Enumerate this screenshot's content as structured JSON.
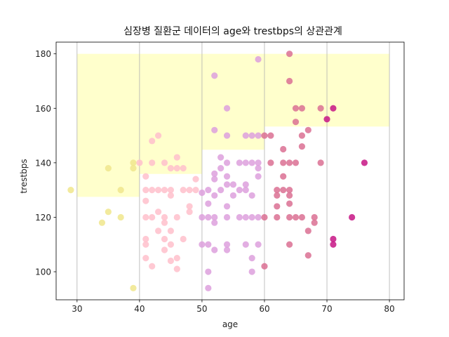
{
  "chart_data": {
    "type": "scatter",
    "title": "심장병 질환군 데이터의 age와 trestbps의 상관관계",
    "xlabel": "age",
    "ylabel": "trestbps",
    "xlim": [
      26.65,
      82.35
    ],
    "ylim": [
      89.7,
      184.3
    ],
    "xticks": [
      "30",
      "40",
      "50",
      "60",
      "70",
      "80"
    ],
    "yticks": [
      "100",
      "120",
      "140",
      "160",
      "180"
    ],
    "grid": "vertical lines at x ticks",
    "points": [
      {
        "x": 29,
        "y": 130
      },
      {
        "x": 34,
        "y": 118
      },
      {
        "x": 35,
        "y": 138
      },
      {
        "x": 35,
        "y": 122
      },
      {
        "x": 37,
        "y": 130
      },
      {
        "x": 37,
        "y": 120
      },
      {
        "x": 39,
        "y": 140
      },
      {
        "x": 39,
        "y": 138
      },
      {
        "x": 39,
        "y": 94
      },
      {
        "x": 40,
        "y": 140
      },
      {
        "x": 41,
        "y": 135
      },
      {
        "x": 41,
        "y": 130
      },
      {
        "x": 41,
        "y": 126
      },
      {
        "x": 41,
        "y": 120
      },
      {
        "x": 41,
        "y": 112
      },
      {
        "x": 41,
        "y": 110
      },
      {
        "x": 41,
        "y": 105
      },
      {
        "x": 42,
        "y": 148
      },
      {
        "x": 42,
        "y": 140
      },
      {
        "x": 42,
        "y": 130
      },
      {
        "x": 42,
        "y": 120
      },
      {
        "x": 42,
        "y": 102
      },
      {
        "x": 43,
        "y": 150
      },
      {
        "x": 43,
        "y": 130
      },
      {
        "x": 43,
        "y": 122
      },
      {
        "x": 43,
        "y": 115
      },
      {
        "x": 44,
        "y": 140
      },
      {
        "x": 44,
        "y": 130
      },
      {
        "x": 44,
        "y": 120
      },
      {
        "x": 44,
        "y": 118
      },
      {
        "x": 44,
        "y": 112
      },
      {
        "x": 44,
        "y": 108
      },
      {
        "x": 45,
        "y": 138
      },
      {
        "x": 45,
        "y": 130
      },
      {
        "x": 45,
        "y": 128
      },
      {
        "x": 45,
        "y": 115
      },
      {
        "x": 45,
        "y": 110
      },
      {
        "x": 45,
        "y": 104
      },
      {
        "x": 46,
        "y": 142
      },
      {
        "x": 46,
        "y": 138
      },
      {
        "x": 46,
        "y": 120
      },
      {
        "x": 46,
        "y": 105
      },
      {
        "x": 46,
        "y": 101
      },
      {
        "x": 47,
        "y": 138
      },
      {
        "x": 47,
        "y": 130
      },
      {
        "x": 47,
        "y": 112
      },
      {
        "x": 48,
        "y": 130
      },
      {
        "x": 48,
        "y": 124
      },
      {
        "x": 48,
        "y": 122
      },
      {
        "x": 49,
        "y": 134
      },
      {
        "x": 49,
        "y": 130
      },
      {
        "x": 50,
        "y": 129
      },
      {
        "x": 50,
        "y": 120
      },
      {
        "x": 50,
        "y": 110
      },
      {
        "x": 51,
        "y": 130
      },
      {
        "x": 51,
        "y": 125
      },
      {
        "x": 51,
        "y": 120
      },
      {
        "x": 51,
        "y": 110
      },
      {
        "x": 51,
        "y": 100
      },
      {
        "x": 51,
        "y": 94
      },
      {
        "x": 52,
        "y": 172
      },
      {
        "x": 52,
        "y": 152
      },
      {
        "x": 52,
        "y": 136
      },
      {
        "x": 52,
        "y": 134
      },
      {
        "x": 52,
        "y": 128
      },
      {
        "x": 52,
        "y": 120
      },
      {
        "x": 52,
        "y": 118
      },
      {
        "x": 52,
        "y": 108
      },
      {
        "x": 53,
        "y": 142
      },
      {
        "x": 53,
        "y": 138
      },
      {
        "x": 53,
        "y": 130
      },
      {
        "x": 54,
        "y": 160
      },
      {
        "x": 54,
        "y": 150
      },
      {
        "x": 54,
        "y": 140
      },
      {
        "x": 54,
        "y": 135
      },
      {
        "x": 54,
        "y": 132
      },
      {
        "x": 54,
        "y": 124
      },
      {
        "x": 54,
        "y": 120
      },
      {
        "x": 54,
        "y": 110
      },
      {
        "x": 54,
        "y": 108
      },
      {
        "x": 55,
        "y": 132
      },
      {
        "x": 55,
        "y": 128
      },
      {
        "x": 56,
        "y": 140
      },
      {
        "x": 56,
        "y": 130
      },
      {
        "x": 56,
        "y": 120
      },
      {
        "x": 57,
        "y": 150
      },
      {
        "x": 57,
        "y": 140
      },
      {
        "x": 57,
        "y": 132
      },
      {
        "x": 57,
        "y": 130
      },
      {
        "x": 57,
        "y": 120
      },
      {
        "x": 57,
        "y": 110
      },
      {
        "x": 58,
        "y": 150
      },
      {
        "x": 58,
        "y": 140
      },
      {
        "x": 58,
        "y": 128
      },
      {
        "x": 58,
        "y": 120
      },
      {
        "x": 58,
        "y": 105
      },
      {
        "x": 58,
        "y": 100
      },
      {
        "x": 59,
        "y": 178
      },
      {
        "x": 59,
        "y": 150
      },
      {
        "x": 59,
        "y": 140
      },
      {
        "x": 59,
        "y": 138
      },
      {
        "x": 59,
        "y": 135
      },
      {
        "x": 59,
        "y": 120
      },
      {
        "x": 59,
        "y": 110
      },
      {
        "x": 60,
        "y": 150
      },
      {
        "x": 60,
        "y": 120
      },
      {
        "x": 60,
        "y": 102
      },
      {
        "x": 61,
        "y": 150
      },
      {
        "x": 61,
        "y": 140
      },
      {
        "x": 62,
        "y": 130
      },
      {
        "x": 62,
        "y": 128
      },
      {
        "x": 62,
        "y": 124
      },
      {
        "x": 62,
        "y": 120
      },
      {
        "x": 63,
        "y": 145
      },
      {
        "x": 63,
        "y": 140
      },
      {
        "x": 63,
        "y": 135
      },
      {
        "x": 63,
        "y": 130
      },
      {
        "x": 64,
        "y": 180
      },
      {
        "x": 64,
        "y": 170
      },
      {
        "x": 64,
        "y": 140
      },
      {
        "x": 64,
        "y": 130
      },
      {
        "x": 64,
        "y": 128
      },
      {
        "x": 64,
        "y": 125
      },
      {
        "x": 64,
        "y": 120
      },
      {
        "x": 64,
        "y": 110
      },
      {
        "x": 65,
        "y": 160
      },
      {
        "x": 65,
        "y": 155
      },
      {
        "x": 65,
        "y": 140
      },
      {
        "x": 65,
        "y": 120
      },
      {
        "x": 66,
        "y": 160
      },
      {
        "x": 66,
        "y": 150
      },
      {
        "x": 66,
        "y": 146
      },
      {
        "x": 66,
        "y": 120
      },
      {
        "x": 67,
        "y": 152
      },
      {
        "x": 67,
        "y": 115
      },
      {
        "x": 67,
        "y": 106
      },
      {
        "x": 68,
        "y": 120
      },
      {
        "x": 68,
        "y": 118
      },
      {
        "x": 69,
        "y": 160
      },
      {
        "x": 69,
        "y": 140
      },
      {
        "x": 70,
        "y": 156
      },
      {
        "x": 71,
        "y": 160
      },
      {
        "x": 71,
        "y": 112
      },
      {
        "x": 71,
        "y": 110
      },
      {
        "x": 74,
        "y": 120
      },
      {
        "x": 76,
        "y": 140
      }
    ],
    "bands": [
      {
        "x_range": [
          30,
          40
        ],
        "y_range": [
          127.5,
          180
        ]
      },
      {
        "x_range": [
          40,
          50
        ],
        "y_range": [
          135.9,
          180
        ]
      },
      {
        "x_range": [
          50,
          60
        ],
        "y_range": [
          144.8,
          180
        ]
      },
      {
        "x_range": [
          60,
          70
        ],
        "y_range": [
          153.3,
          180
        ]
      },
      {
        "x_range": [
          70,
          80
        ],
        "y_range": [
          153.3,
          180
        ]
      }
    ],
    "colors": {
      "background": "#ffffff",
      "band": "#ffffcc",
      "grid": "#b0b0b0",
      "axis": "#000000",
      "age_30s": "#f0e68c",
      "age_40s": "#ffc0cb",
      "age_50s": "#dda0dd",
      "age_60s": "#db7093",
      "age_70s": "#c71585"
    }
  }
}
